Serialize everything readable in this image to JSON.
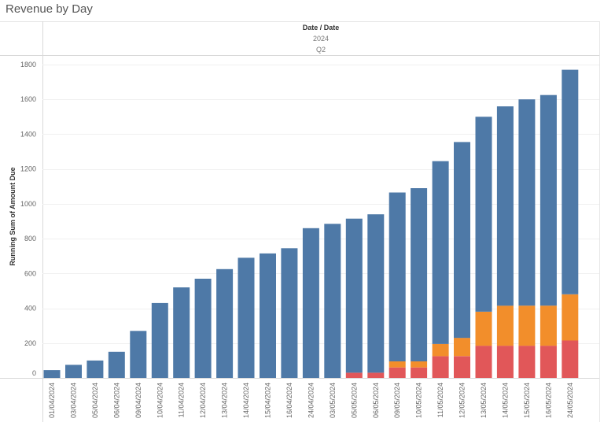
{
  "chart_data": {
    "type": "bar",
    "stacked": true,
    "title": "Revenue by Day",
    "column_header": {
      "field": "Date / Date",
      "year": "2024",
      "quarter": "Q2"
    },
    "ylabel": "Running Sum of Amount Due",
    "xlabel": "",
    "ylim": [
      0,
      1800
    ],
    "yticks": [
      0,
      200,
      400,
      600,
      800,
      1000,
      1200,
      1400,
      1600,
      1800
    ],
    "grid": true,
    "legend": "none",
    "categories": [
      "01/04/2024",
      "03/04/2024",
      "05/04/2024",
      "06/04/2024",
      "09/04/2024",
      "10/04/2024",
      "11/04/2024",
      "12/04/2024",
      "13/04/2024",
      "14/04/2024",
      "15/04/2024",
      "16/04/2024",
      "24/04/2024",
      "03/05/2024",
      "05/05/2024",
      "06/05/2024",
      "09/05/2024",
      "10/05/2024",
      "11/05/2024",
      "12/05/2024",
      "13/05/2024",
      "14/05/2024",
      "15/05/2024",
      "16/05/2024",
      "24/05/2024"
    ],
    "series": [
      {
        "color": "#e15759",
        "values": [
          0,
          0,
          0,
          0,
          0,
          0,
          0,
          0,
          0,
          0,
          0,
          0,
          0,
          0,
          30,
          30,
          60,
          60,
          125,
          125,
          185,
          185,
          185,
          185,
          215
        ]
      },
      {
        "color": "#f28e2b",
        "values": [
          0,
          0,
          0,
          0,
          0,
          0,
          0,
          0,
          0,
          0,
          0,
          0,
          0,
          0,
          0,
          0,
          35,
          35,
          70,
          105,
          195,
          230,
          230,
          230,
          265
        ]
      },
      {
        "color": "#4e79a7",
        "values": [
          45,
          75,
          100,
          150,
          270,
          430,
          520,
          570,
          625,
          690,
          715,
          745,
          860,
          885,
          885,
          910,
          970,
          995,
          1050,
          1125,
          1120,
          1145,
          1185,
          1210,
          1290
        ]
      }
    ]
  }
}
